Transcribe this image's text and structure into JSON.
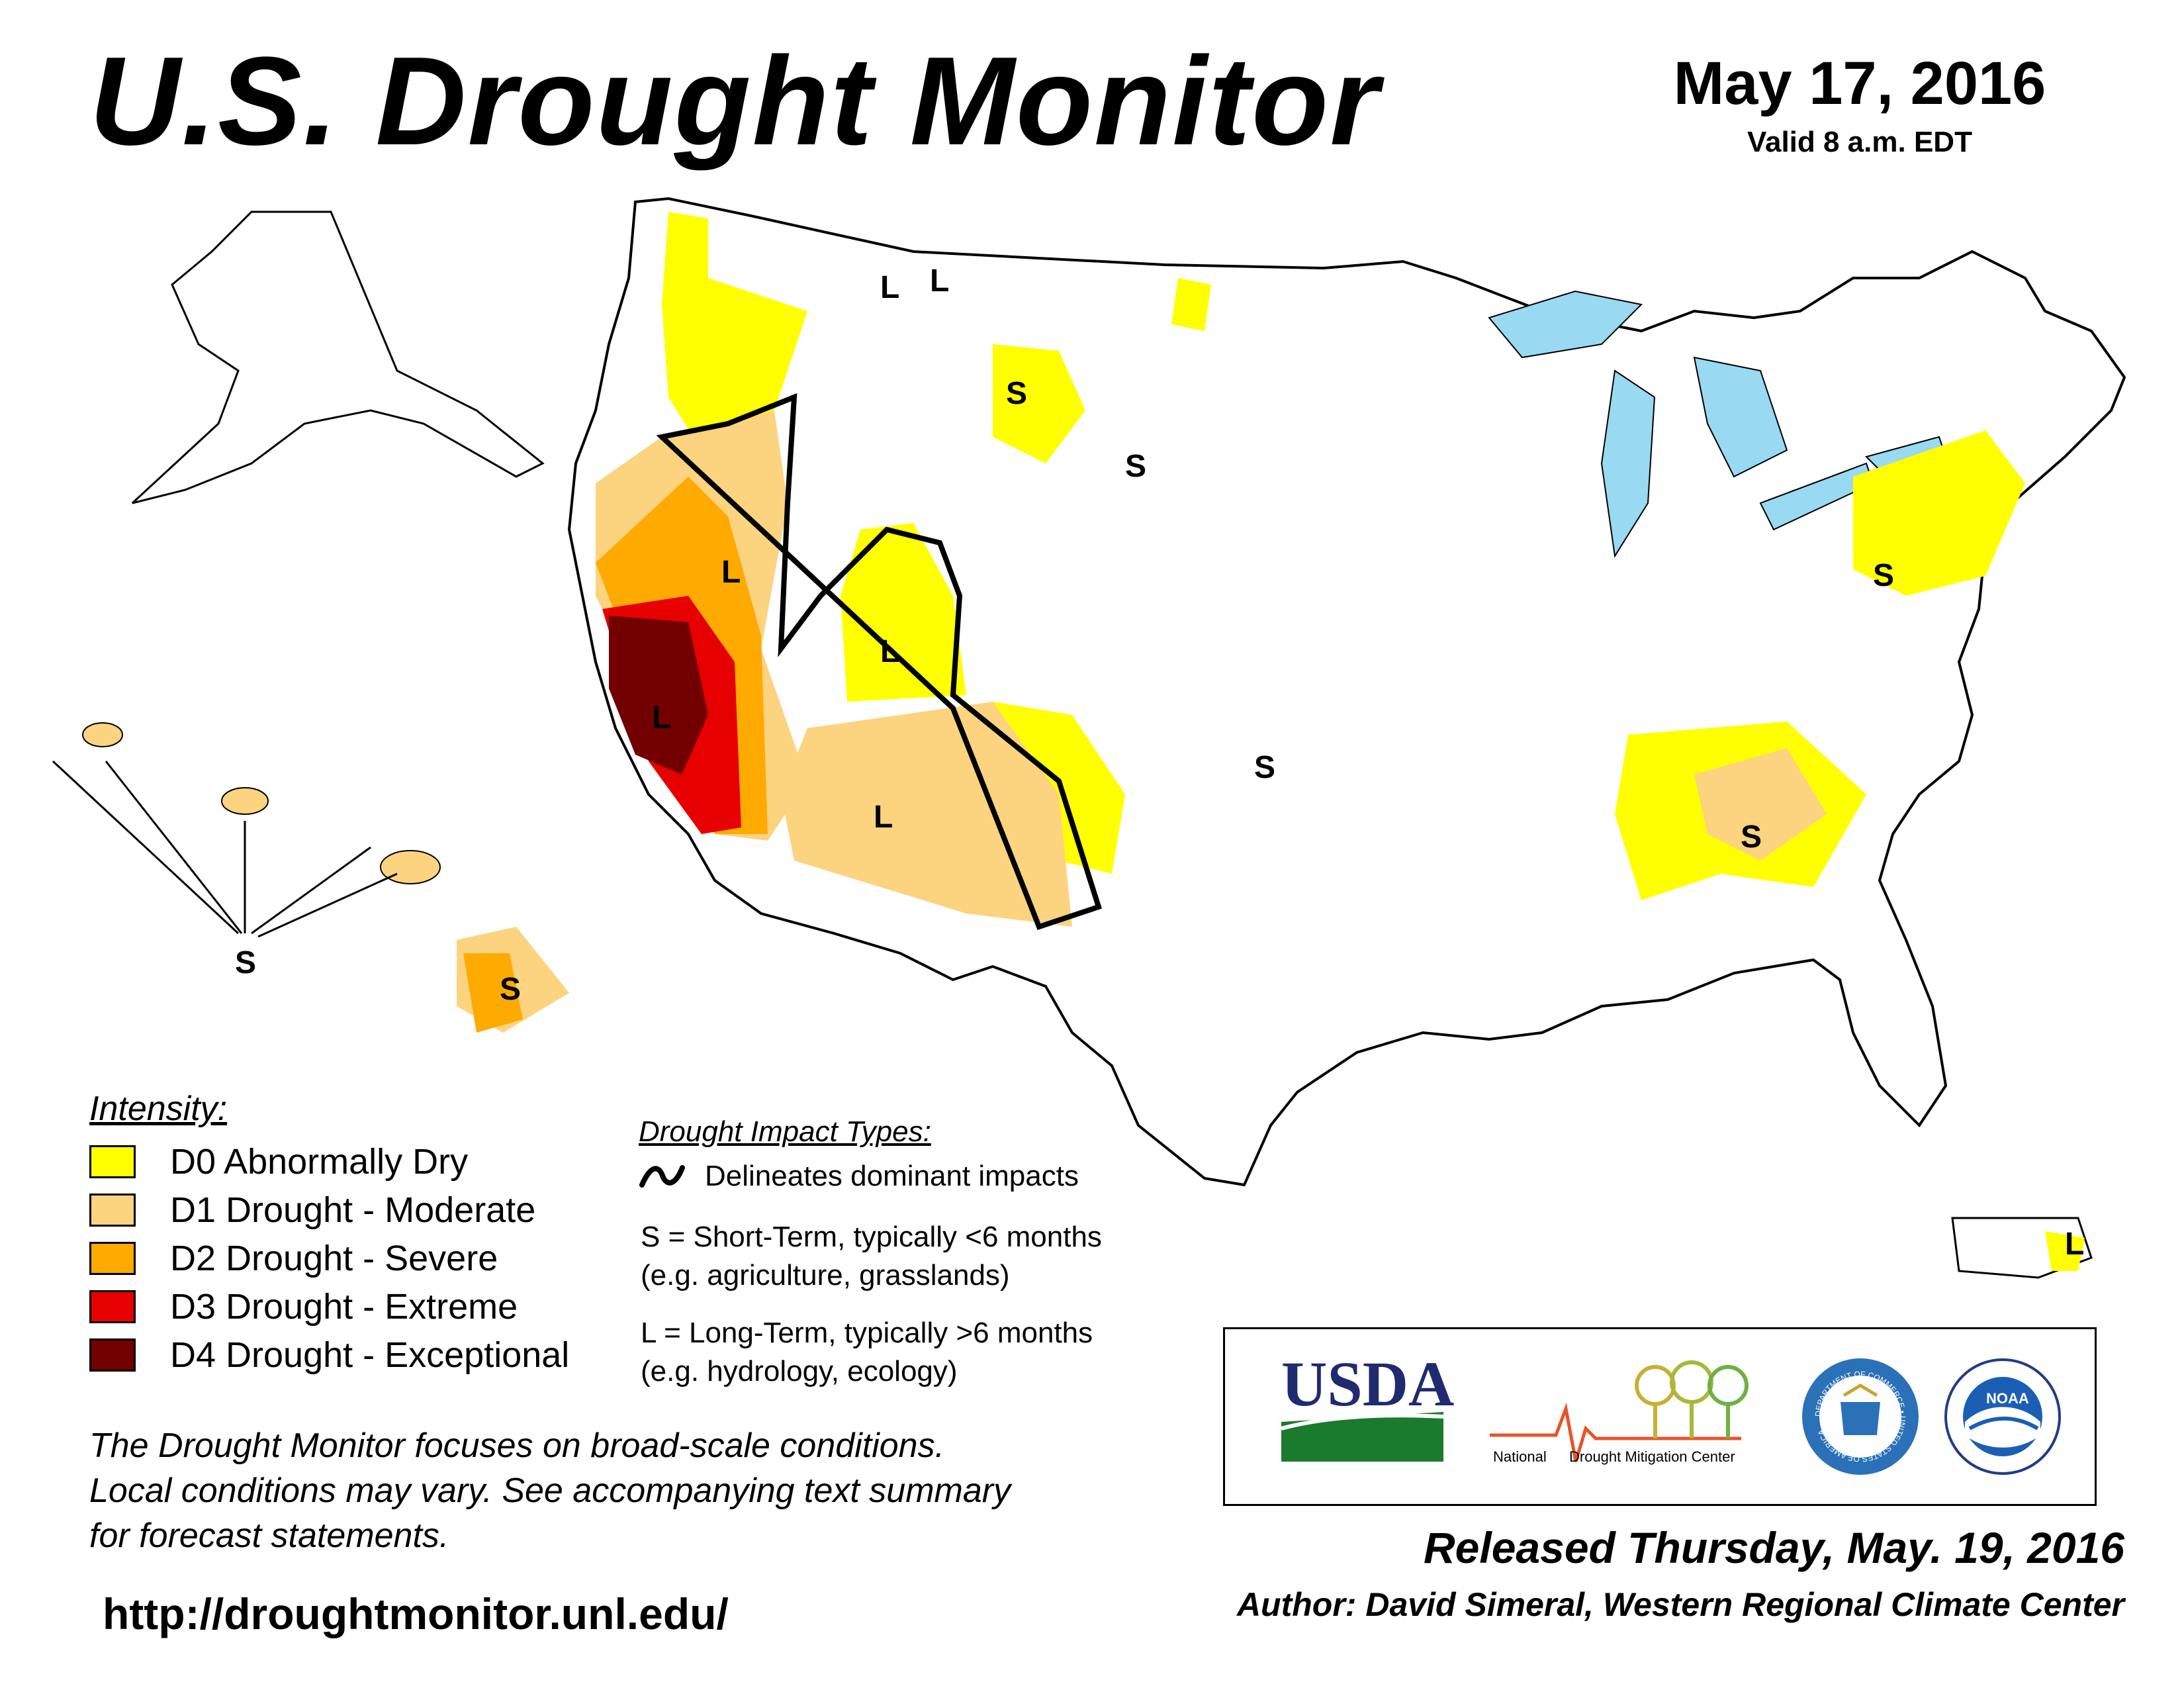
{
  "header": {
    "title": "U.S. Drought Monitor",
    "date": "May 17, 2016",
    "valid": "Valid 8 a.m. EDT"
  },
  "legend": {
    "heading": "Intensity:",
    "items": [
      {
        "label": "D0 Abnormally Dry",
        "color": "#ffff00"
      },
      {
        "label": "D1 Drought - Moderate",
        "color": "#fcd37f"
      },
      {
        "label": "D2 Drought - Severe",
        "color": "#ffaa00"
      },
      {
        "label": "D3 Drought - Extreme",
        "color": "#e60000"
      },
      {
        "label": "D4 Drought - Exceptional",
        "color": "#730000"
      }
    ]
  },
  "impact_types": {
    "heading": "Drought Impact Types:",
    "line_label": "Delineates dominant impacts",
    "short_term": {
      "line1": "S = Short-Term, typically <6 months",
      "line2": "(e.g. agriculture, grasslands)"
    },
    "long_term": {
      "line1": "L = Long-Term, typically >6 months",
      "line2": "(e.g. hydrology, ecology)"
    }
  },
  "map_labels": {
    "short": "S",
    "long": "L"
  },
  "disclaimer": {
    "line1": "The Drought Monitor focuses on broad-scale conditions.",
    "line2": "Local conditions may vary. See accompanying text summary",
    "line3": "for forecast statements."
  },
  "url": "http://droughtmonitor.unl.edu/",
  "logos": {
    "usda": "USDA",
    "ndmc_part1": "National",
    "ndmc_part2": "Drought Mitigation Center",
    "commerce_ring": "DEPARTMENT OF COMMERCE • UNITED STATES OF AMERICA",
    "noaa": "NOAA"
  },
  "footer": {
    "released": "Released Thursday, May. 19, 2016",
    "author": "Author: David Simeral, Western Regional Climate Center"
  },
  "colors": {
    "water": "#99d9f2",
    "river": "#3b9fe8",
    "outline": "#000000"
  }
}
